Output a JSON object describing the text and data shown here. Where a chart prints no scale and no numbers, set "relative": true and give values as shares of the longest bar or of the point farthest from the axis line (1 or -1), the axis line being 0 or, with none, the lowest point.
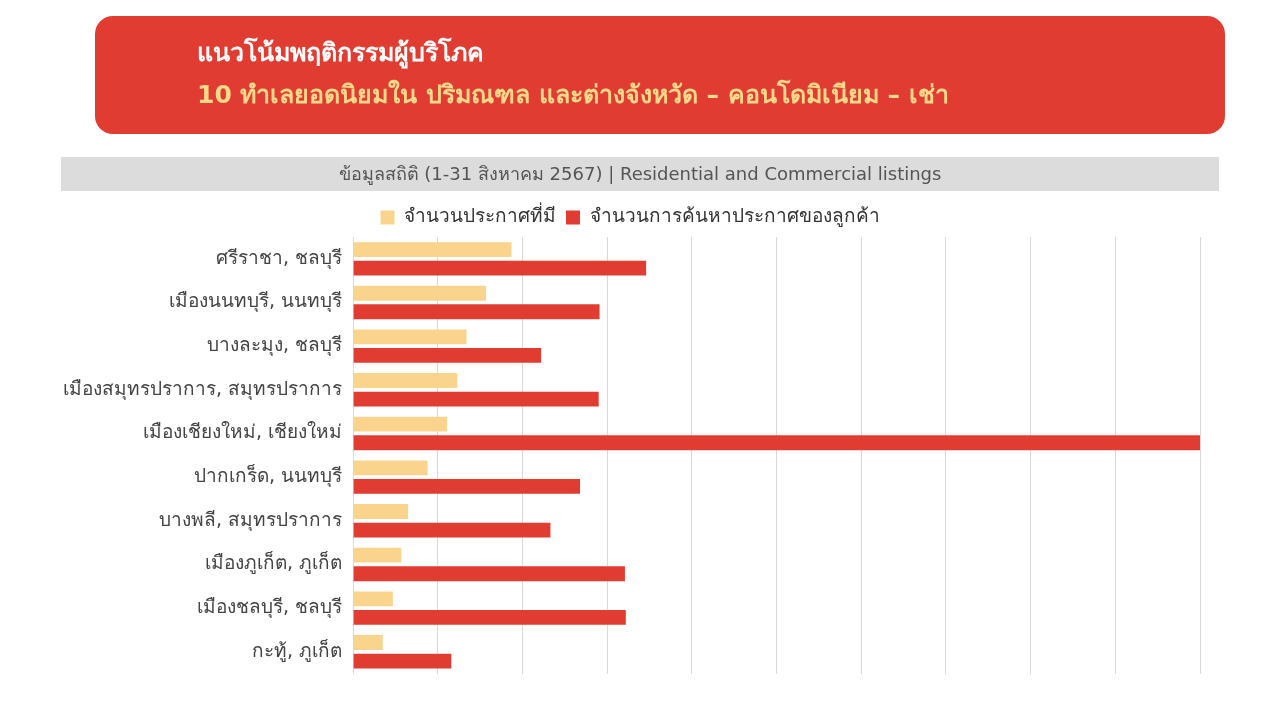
{
  "chart_data": {
    "type": "bar",
    "orientation": "horizontal",
    "relative": true,
    "title": "แนวโน้มพฤติกรรมผู้บริโภค",
    "subtitle": "10 ทำเลยอดนิยมใน ปริมณฑล และต่างจังหวัด – คอนโดมิเนียม – เช่า",
    "annotations": [
      "ข้อมูลสถิติ (1-31 สิงหาคม  2567) | Residential and Commercial listings"
    ],
    "categories": [
      "ศรีราชา, ชลบุรี",
      "เมืองนนทบุรี, นนทบุรี",
      "บางละมุง, ชลบุรี",
      "เมืองสมุทรปราการ, สมุทรปราการ",
      "เมืองเชียงใหม่, เชียงใหม่",
      "ปากเกร็ด, นนทบุรี",
      "บางพลี, สมุทรปราการ",
      "เมืองภูเก็ต, ภูเก็ต",
      "เมืองชลบุรี, ชลบุรี",
      "กะทู้, ภูเก็ต"
    ],
    "series": [
      {
        "name": "จำนวนประกาศที่มี",
        "color": "#fad48c",
        "values": [
          0.187,
          0.157,
          0.134,
          0.123,
          0.111,
          0.088,
          0.065,
          0.057,
          0.047,
          0.035
        ]
      },
      {
        "name": "จำนวนการค้นหาประกาศของลูกค้า",
        "color": "#e03c31",
        "values": [
          0.346,
          0.291,
          0.222,
          0.29,
          1,
          0.268,
          0.233,
          0.321,
          0.322,
          0.116
        ]
      }
    ],
    "legend": "top",
    "grid": "x"
  }
}
